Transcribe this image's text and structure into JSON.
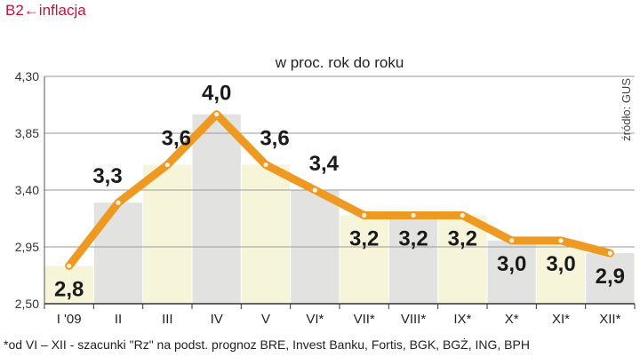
{
  "header": {
    "prefix": "B2",
    "arrow": "←",
    "title": "inflacja"
  },
  "footnote": "*od VI – XII - szacunki \"Rz\" na podst. prognoz BRE, Invest Banku, Fortis, BGK, BGŻ, ING, BPH",
  "source": "źródło: GUS",
  "colors": {
    "line": "#ee9a22",
    "marker": "#fff2dc",
    "bar_yellow": "#f6f5d9",
    "bar_gray": "#e2e2e0",
    "last_label": "#c0143c",
    "header": "#c0143c"
  },
  "chart_data": {
    "type": "line",
    "title": "w proc. rok do roku",
    "categories": [
      "I '09",
      "II",
      "III",
      "IV",
      "V",
      "VI*",
      "VII*",
      "VIII*",
      "IX*",
      "X*",
      "XI*",
      "XII*"
    ],
    "values": [
      2.8,
      3.3,
      3.6,
      4.0,
      3.6,
      3.4,
      3.2,
      3.2,
      3.2,
      3.0,
      3.0,
      2.9
    ],
    "value_labels": [
      "2,8",
      "3,3",
      "3,6",
      "4,0",
      "3,6",
      "3,4",
      "3,2",
      "3,2",
      "3,2",
      "3,0",
      "3,0",
      "2,9"
    ],
    "yticks": [
      2.5,
      2.95,
      3.4,
      3.85,
      4.3
    ],
    "ytick_labels": [
      "2,50",
      "2,95",
      "3,40",
      "3,85",
      "4,30"
    ],
    "ylim": [
      2.5,
      4.3
    ],
    "grid": true,
    "legend": "none"
  }
}
